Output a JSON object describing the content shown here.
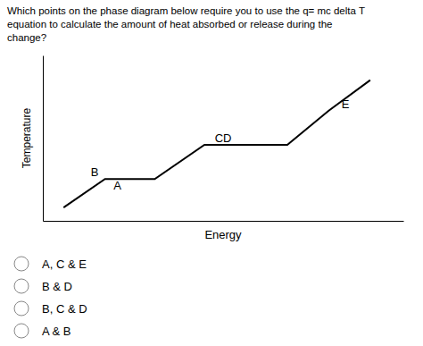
{
  "chart_data": {
    "type": "line",
    "title": [
      "Which points on the phase diagram below require you to use the q= mc delta T",
      "equation to calculate the amount of heat absorbed or release during the",
      "change?"
    ],
    "x_label": "Energy",
    "y_label": "Temperature",
    "x": [
      0.8,
      1.8,
      3.0,
      4.2,
      6.2,
      7.2,
      8.2
    ],
    "values": [
      0.5,
      2.0,
      2.0,
      3.8,
      3.8,
      5.6,
      7.2
    ],
    "color": "#000000",
    "xlim": [
      0.3,
      9.0
    ],
    "ylim": [
      -0.2,
      8.5
    ],
    "xticks": [],
    "yticks": [],
    "tick_labels": false,
    "grid": false,
    "annotations": [
      {
        "text": "A",
        "x": 2.1,
        "y": 1.65
      },
      {
        "text": "B",
        "x": 1.55,
        "y": 2.35
      },
      {
        "text": "C",
        "x": 4.55,
        "y": 4.15
      },
      {
        "text": "D",
        "x": 4.75,
        "y": 4.15
      },
      {
        "text": "E",
        "x": 7.6,
        "y": 5.95
      }
    ],
    "choices": [
      "A, C & E",
      "B & D",
      "B, C & D",
      "A & B"
    ]
  }
}
